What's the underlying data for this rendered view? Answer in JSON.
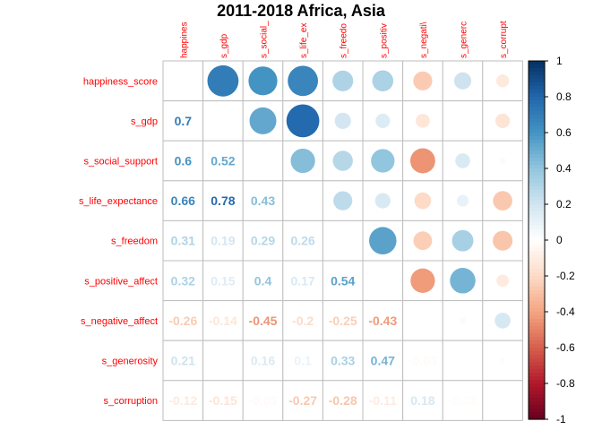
{
  "chart_data": {
    "type": "heatmap",
    "title": "2011-2018 Africa, Asia",
    "row_labels": [
      "happiness_score",
      "s_gdp",
      "s_social_support",
      "s_life_expectance",
      "s_freedom",
      "s_positive_affect",
      "s_negative_affect",
      "s_generosity",
      "s_corruption"
    ],
    "col_labels": [
      "happines",
      "s_gdp",
      "s_social_",
      "s_life_ex",
      "s_freedo",
      "s_positiv",
      "s_negati\\",
      "s_generc",
      "s_corrupt"
    ],
    "lower_labels": [
      [],
      [
        "0.7"
      ],
      [
        "0.6",
        "0.52"
      ],
      [
        "0.66",
        "0.78",
        "0.43"
      ],
      [
        "0.31",
        "0.19",
        "0.29",
        "0.26"
      ],
      [
        "0.32",
        "0.15",
        "0.4",
        "0.17",
        "0.54"
      ],
      [
        "-0.26",
        "-0.14",
        "-0.45",
        "-0.2",
        "-0.25",
        "-0.43"
      ],
      [
        "0.21",
        "",
        "0.16",
        "0.1",
        "0.33",
        "0.47",
        "-0.03"
      ],
      [
        "-0.12",
        "-0.15",
        "-0.03",
        "-0.27",
        "-0.28",
        "-0.11",
        "0.18",
        "-0.02"
      ]
    ],
    "upper_values": [
      [
        null,
        0.7,
        0.6,
        0.66,
        0.31,
        0.32,
        -0.26,
        0.21,
        -0.12
      ],
      [
        null,
        null,
        0.52,
        0.78,
        0.19,
        0.15,
        -0.14,
        0.0,
        -0.15
      ],
      [
        null,
        null,
        null,
        0.43,
        0.29,
        0.4,
        -0.45,
        0.16,
        -0.03
      ],
      [
        null,
        null,
        null,
        null,
        0.26,
        0.17,
        -0.2,
        0.1,
        -0.27
      ],
      [
        null,
        null,
        null,
        null,
        null,
        0.54,
        -0.25,
        0.33,
        -0.28
      ],
      [
        null,
        null,
        null,
        null,
        null,
        null,
        -0.43,
        0.47,
        -0.11
      ],
      [
        null,
        null,
        null,
        null,
        null,
        null,
        null,
        -0.03,
        0.18
      ],
      [
        null,
        null,
        null,
        null,
        null,
        null,
        null,
        null,
        -0.02
      ],
      [
        null,
        null,
        null,
        null,
        null,
        null,
        null,
        null,
        null
      ]
    ],
    "colorbar_ticks": [
      "1",
      "0.8",
      "0.6",
      "0.4",
      "0.2",
      "0",
      "-0.2",
      "-0.4",
      "-0.6",
      "-0.8",
      "-1"
    ],
    "colorbar_range": [
      -1,
      1
    ],
    "palette": [
      "#67001F",
      "#B2182B",
      "#D6604D",
      "#F4A582",
      "#FDDBC7",
      "#FFFFFF",
      "#D1E5F0",
      "#92C5DE",
      "#4393C3",
      "#2166AC",
      "#053061"
    ],
    "grid_color": "#bebebe",
    "label_color": "#ff0000"
  }
}
